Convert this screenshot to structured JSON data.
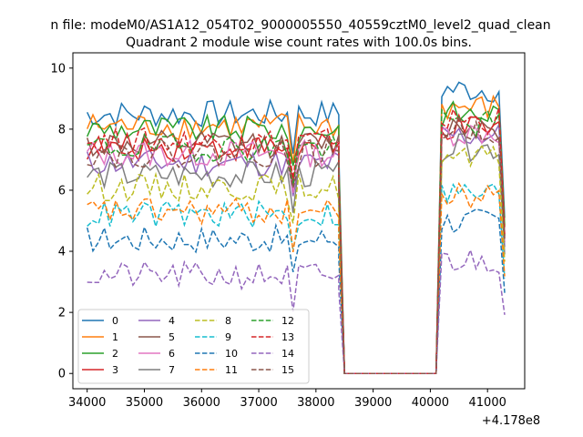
{
  "figure": {
    "suptitle": "n file: modeM0/AS1A12_054T02_9000005550_40559cztM0_level2_quad_clean"
  },
  "chart_data": {
    "type": "line",
    "title": "Quadrant 2 module wise count rates with 100.0s bins.",
    "xlabel": "",
    "ylabel": "",
    "x_offset_label": "+4.178e8",
    "xlim": [
      33750,
      41650
    ],
    "ylim": [
      -0.5,
      10.5
    ],
    "x_ticks": [
      34000,
      35000,
      36000,
      37000,
      38000,
      39000,
      40000,
      41000
    ],
    "x_tick_labels": [
      "34000",
      "35000",
      "36000",
      "37000",
      "38000",
      "39000",
      "40000",
      "41000"
    ],
    "y_ticks": [
      0,
      2,
      4,
      6,
      8,
      10
    ],
    "y_tick_labels": [
      "0",
      "2",
      "4",
      "6",
      "8",
      "10"
    ],
    "grid": false,
    "legend_position": "lower-left",
    "x_segments": [
      {
        "start": 34000,
        "end": 38500,
        "step": 100
      },
      {
        "start": 38500,
        "end": 40100,
        "step": 100
      },
      {
        "start": 40100,
        "end": 41300,
        "step": 100
      }
    ],
    "series": [
      {
        "name": "0",
        "color": "#1f77b4",
        "dash": "solid",
        "level": 8.5,
        "gti2_level": 9.3
      },
      {
        "name": "1",
        "color": "#ff7f0e",
        "dash": "solid",
        "level": 8.1,
        "gti2_level": 8.7
      },
      {
        "name": "2",
        "color": "#2ca02c",
        "dash": "solid",
        "level": 8.0,
        "gti2_level": 8.5
      },
      {
        "name": "3",
        "color": "#d62728",
        "dash": "solid",
        "level": 7.4,
        "gti2_level": 8.0
      },
      {
        "name": "4",
        "color": "#9467bd",
        "dash": "solid",
        "level": 6.9,
        "gti2_level": 7.8
      },
      {
        "name": "5",
        "color": "#8c564b",
        "dash": "solid",
        "level": 7.5,
        "gti2_level": 8.1
      },
      {
        "name": "6",
        "color": "#e377c2",
        "dash": "solid",
        "level": 7.2,
        "gti2_level": 7.9
      },
      {
        "name": "7",
        "color": "#7f7f7f",
        "dash": "solid",
        "level": 6.5,
        "gti2_level": 7.4
      },
      {
        "name": "8",
        "color": "#bcbd22",
        "dash": "dashed",
        "level": 6.1,
        "gti2_level": 7.0
      },
      {
        "name": "9",
        "color": "#17becf",
        "dash": "dashed",
        "level": 5.2,
        "gti2_level": 5.9
      },
      {
        "name": "10",
        "color": "#1f77b4",
        "dash": "dashed",
        "level": 4.4,
        "gti2_level": 5.0
      },
      {
        "name": "11",
        "color": "#ff7f0e",
        "dash": "dashed",
        "level": 5.3,
        "gti2_level": 5.8
      },
      {
        "name": "12",
        "color": "#2ca02c",
        "dash": "dashed",
        "level": 7.4,
        "gti2_level": 8.2
      },
      {
        "name": "13",
        "color": "#d62728",
        "dash": "dashed",
        "level": 7.6,
        "gti2_level": 8.3
      },
      {
        "name": "14",
        "color": "#9467bd",
        "dash": "dashed",
        "level": 3.2,
        "gti2_level": 3.7
      },
      {
        "name": "15",
        "color": "#8c564b",
        "dash": "dashed",
        "level": 7.2,
        "gti2_level": 8.0
      }
    ]
  }
}
